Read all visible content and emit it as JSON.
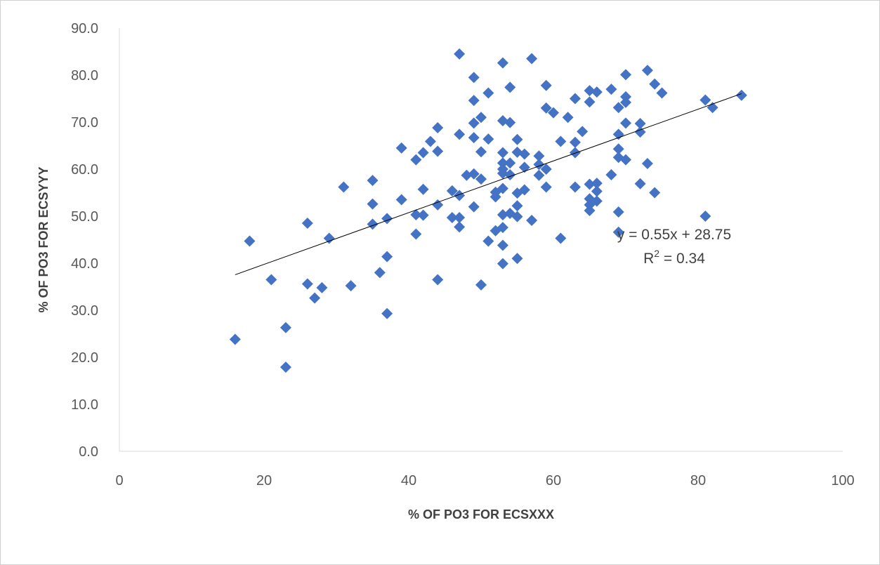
{
  "chart_data": {
    "type": "scatter",
    "title": "",
    "xlabel": "% OF PO3 FOR ECSXXX",
    "ylabel": "% OF PO3 FOR ECSYYY",
    "xlim": [
      0,
      100
    ],
    "ylim": [
      0,
      90
    ],
    "x_ticks": [
      "0",
      "20",
      "40",
      "60",
      "80",
      "100"
    ],
    "y_ticks": [
      "0.0",
      "10.0",
      "20.0",
      "30.0",
      "40.0",
      "50.0",
      "60.0",
      "70.0",
      "80.0",
      "90.0"
    ],
    "grid": false,
    "legend": "none",
    "marker": "diamond",
    "color": "#4472C4",
    "trendline": {
      "slope": 0.55,
      "intercept": 28.75,
      "x_range": [
        16,
        86
      ],
      "equation_label": "y = 0.55x + 28.75",
      "r2_prefix": "R",
      "r2_exp": "2",
      "r2_suffix": " = 0.34"
    },
    "points": [
      [
        16,
        23.8
      ],
      [
        18,
        44.7
      ],
      [
        21,
        36.5
      ],
      [
        23,
        26.3
      ],
      [
        23,
        17.9
      ],
      [
        26,
        48.5
      ],
      [
        26,
        35.6
      ],
      [
        27,
        32.6
      ],
      [
        28,
        34.8
      ],
      [
        29,
        45.3
      ],
      [
        31,
        56.2
      ],
      [
        32,
        35.2
      ],
      [
        35,
        57.6
      ],
      [
        35,
        52.6
      ],
      [
        35,
        48.3
      ],
      [
        36,
        38.0
      ],
      [
        37,
        49.5
      ],
      [
        37,
        41.4
      ],
      [
        37,
        29.3
      ],
      [
        39,
        64.5
      ],
      [
        39,
        53.5
      ],
      [
        41,
        62.0
      ],
      [
        41,
        50.3
      ],
      [
        41,
        46.2
      ],
      [
        42,
        63.5
      ],
      [
        42,
        55.7
      ],
      [
        42,
        50.2
      ],
      [
        43,
        65.9
      ],
      [
        44,
        68.8
      ],
      [
        44,
        63.8
      ],
      [
        44,
        52.4
      ],
      [
        44,
        36.5
      ],
      [
        46,
        55.4
      ],
      [
        46,
        49.7
      ],
      [
        47,
        84.5
      ],
      [
        47,
        67.4
      ],
      [
        47,
        54.4
      ],
      [
        47,
        49.7
      ],
      [
        47,
        47.7
      ],
      [
        48,
        58.7
      ],
      [
        49,
        79.5
      ],
      [
        49,
        74.6
      ],
      [
        49,
        69.8
      ],
      [
        49,
        66.7
      ],
      [
        49,
        59.0
      ],
      [
        49,
        52.0
      ],
      [
        50,
        71.0
      ],
      [
        50,
        63.7
      ],
      [
        50,
        57.9
      ],
      [
        50,
        35.4
      ],
      [
        51,
        76.2
      ],
      [
        51,
        66.4
      ],
      [
        51,
        44.7
      ],
      [
        52,
        55.1
      ],
      [
        52,
        54.1
      ],
      [
        52,
        46.9
      ],
      [
        53,
        82.6
      ],
      [
        53,
        70.3
      ],
      [
        53,
        63.5
      ],
      [
        53,
        61.3
      ],
      [
        53,
        60.0
      ],
      [
        53,
        59.1
      ],
      [
        53,
        55.9
      ],
      [
        53,
        50.3
      ],
      [
        53,
        47.6
      ],
      [
        53,
        43.8
      ],
      [
        53,
        39.9
      ],
      [
        54,
        77.4
      ],
      [
        54,
        69.9
      ],
      [
        54,
        61.3
      ],
      [
        54,
        58.8
      ],
      [
        54,
        50.6
      ],
      [
        55,
        66.3
      ],
      [
        55,
        63.6
      ],
      [
        55,
        54.9
      ],
      [
        55,
        52.2
      ],
      [
        55,
        49.9
      ],
      [
        55,
        41.0
      ],
      [
        56,
        63.2
      ],
      [
        56,
        60.4
      ],
      [
        56,
        55.6
      ],
      [
        57,
        83.5
      ],
      [
        57,
        49.1
      ],
      [
        58,
        62.8
      ],
      [
        58,
        61.0
      ],
      [
        58,
        58.7
      ],
      [
        59,
        77.8
      ],
      [
        59,
        73.0
      ],
      [
        59,
        60.0
      ],
      [
        59,
        56.2
      ],
      [
        60,
        72.0
      ],
      [
        61,
        65.9
      ],
      [
        61,
        45.3
      ],
      [
        62,
        71.0
      ],
      [
        63,
        75.0
      ],
      [
        63,
        65.7
      ],
      [
        63,
        63.5
      ],
      [
        63,
        56.2
      ],
      [
        64,
        68.0
      ],
      [
        65,
        76.7
      ],
      [
        65,
        74.3
      ],
      [
        65,
        56.8
      ],
      [
        65,
        53.7
      ],
      [
        65,
        52.4
      ],
      [
        65,
        51.2
      ],
      [
        66,
        76.4
      ],
      [
        66,
        57.0
      ],
      [
        66,
        55.3
      ],
      [
        66,
        53.2
      ],
      [
        68,
        77.0
      ],
      [
        68,
        58.8
      ],
      [
        69,
        73.1
      ],
      [
        69,
        67.4
      ],
      [
        69,
        64.3
      ],
      [
        69,
        62.5
      ],
      [
        69,
        50.9
      ],
      [
        69,
        46.6
      ],
      [
        70,
        80.1
      ],
      [
        70,
        75.4
      ],
      [
        70,
        74.2
      ],
      [
        70,
        69.8
      ],
      [
        70,
        62.0
      ],
      [
        72,
        69.7
      ],
      [
        72,
        67.9
      ],
      [
        72,
        56.9
      ],
      [
        73,
        81.0
      ],
      [
        73,
        61.2
      ],
      [
        74,
        78.1
      ],
      [
        74,
        55.0
      ],
      [
        75,
        76.2
      ],
      [
        81,
        74.7
      ],
      [
        81,
        50.0
      ],
      [
        82,
        73.1
      ],
      [
        86,
        75.7
      ]
    ]
  }
}
